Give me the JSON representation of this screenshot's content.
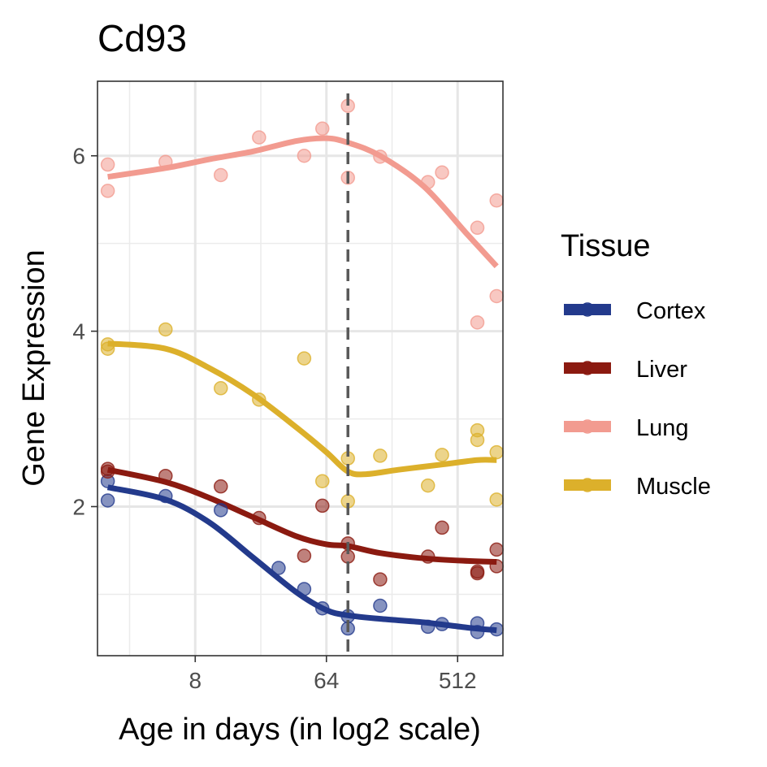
{
  "chart_data": {
    "type": "scatter",
    "title": "Cd93",
    "xlabel": "Age in days (in log2 scale)",
    "ylabel": "Gene Expression",
    "x_scale": "log2",
    "x_ticks": [
      8,
      64,
      512
    ],
    "y_ticks": [
      2,
      4,
      6
    ],
    "xlim": [
      1.7,
      1050
    ],
    "ylim": [
      0.3,
      6.85
    ],
    "grid": true,
    "vline": {
      "x": 90,
      "style": "dashed"
    },
    "legend": {
      "title": "Tissue",
      "position": "right"
    },
    "series": [
      {
        "name": "Cortex",
        "color": "#233a8c",
        "points": [
          [
            2,
            2.29
          ],
          [
            2,
            2.07
          ],
          [
            5,
            2.12
          ],
          [
            12,
            1.96
          ],
          [
            30,
            1.3
          ],
          [
            45,
            1.06
          ],
          [
            60,
            0.84
          ],
          [
            90,
            0.75
          ],
          [
            90,
            0.61
          ],
          [
            150,
            0.87
          ],
          [
            320,
            0.63
          ],
          [
            400,
            0.66
          ],
          [
            700,
            0.67
          ],
          [
            700,
            0.57
          ],
          [
            950,
            0.6
          ]
        ],
        "smooth": [
          [
            2,
            2.22
          ],
          [
            5,
            2.08
          ],
          [
            10,
            1.82
          ],
          [
            20,
            1.42
          ],
          [
            40,
            1.02
          ],
          [
            64,
            0.82
          ],
          [
            90,
            0.76
          ],
          [
            150,
            0.72
          ],
          [
            300,
            0.68
          ],
          [
            600,
            0.62
          ],
          [
            950,
            0.59
          ]
        ]
      },
      {
        "name": "Liver",
        "color": "#8b1a10",
        "points": [
          [
            2,
            2.43
          ],
          [
            2,
            2.4
          ],
          [
            5,
            2.35
          ],
          [
            12,
            2.23
          ],
          [
            22,
            1.87
          ],
          [
            45,
            1.44
          ],
          [
            60,
            2.01
          ],
          [
            90,
            1.58
          ],
          [
            90,
            1.43
          ],
          [
            150,
            1.17
          ],
          [
            320,
            1.43
          ],
          [
            400,
            1.76
          ],
          [
            700,
            1.26
          ],
          [
            700,
            1.24
          ],
          [
            950,
            1.51
          ],
          [
            950,
            1.32
          ]
        ],
        "smooth": [
          [
            2,
            2.42
          ],
          [
            5,
            2.28
          ],
          [
            10,
            2.1
          ],
          [
            20,
            1.88
          ],
          [
            40,
            1.66
          ],
          [
            64,
            1.57
          ],
          [
            90,
            1.55
          ],
          [
            150,
            1.47
          ],
          [
            300,
            1.41
          ],
          [
            600,
            1.38
          ],
          [
            950,
            1.37
          ]
        ]
      },
      {
        "name": "Lung",
        "color": "#f29b90",
        "points": [
          [
            2,
            5.9
          ],
          [
            2,
            5.6
          ],
          [
            5,
            5.93
          ],
          [
            12,
            5.78
          ],
          [
            22,
            6.21
          ],
          [
            45,
            6.0
          ],
          [
            60,
            6.31
          ],
          [
            90,
            6.57
          ],
          [
            90,
            5.75
          ],
          [
            150,
            5.99
          ],
          [
            320,
            5.7
          ],
          [
            400,
            5.81
          ],
          [
            700,
            5.18
          ],
          [
            700,
            4.1
          ],
          [
            950,
            5.49
          ],
          [
            950,
            4.4
          ]
        ],
        "smooth": [
          [
            2,
            5.76
          ],
          [
            5,
            5.86
          ],
          [
            10,
            5.96
          ],
          [
            20,
            6.05
          ],
          [
            40,
            6.17
          ],
          [
            64,
            6.2
          ],
          [
            90,
            6.15
          ],
          [
            150,
            6.0
          ],
          [
            300,
            5.65
          ],
          [
            600,
            5.1
          ],
          [
            950,
            4.74
          ]
        ]
      },
      {
        "name": "Muscle",
        "color": "#dcb02b",
        "points": [
          [
            2,
            3.85
          ],
          [
            2,
            3.8
          ],
          [
            5,
            4.02
          ],
          [
            12,
            3.35
          ],
          [
            22,
            3.22
          ],
          [
            45,
            3.69
          ],
          [
            60,
            2.29
          ],
          [
            90,
            2.55
          ],
          [
            90,
            2.06
          ],
          [
            150,
            2.58
          ],
          [
            320,
            2.24
          ],
          [
            400,
            2.59
          ],
          [
            700,
            2.87
          ],
          [
            700,
            2.76
          ],
          [
            950,
            2.62
          ],
          [
            950,
            2.08
          ]
        ],
        "smooth": [
          [
            2,
            3.86
          ],
          [
            5,
            3.8
          ],
          [
            10,
            3.58
          ],
          [
            20,
            3.28
          ],
          [
            40,
            2.9
          ],
          [
            64,
            2.62
          ],
          [
            90,
            2.4
          ],
          [
            120,
            2.37
          ],
          [
            200,
            2.42
          ],
          [
            400,
            2.48
          ],
          [
            700,
            2.53
          ],
          [
            950,
            2.53
          ]
        ]
      }
    ]
  }
}
